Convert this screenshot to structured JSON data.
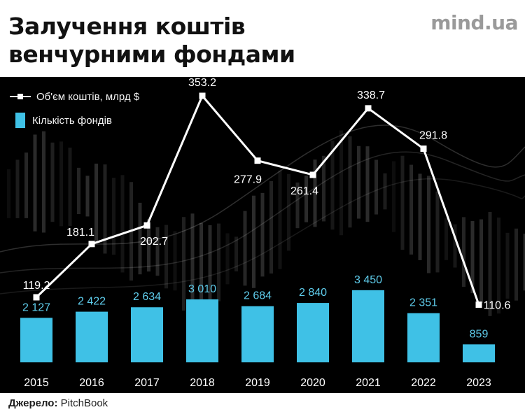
{
  "title_line1": "Залучення коштів",
  "title_line2": "венчурними фондами",
  "brand": "mind.ua",
  "legend": {
    "line_label": "Об'єм коштів, млрд $",
    "bar_label": "Кількість фондів"
  },
  "source": {
    "label": "Джерело:",
    "value": "PitchBook"
  },
  "colors": {
    "bar": "#3fc1e6",
    "line": "#ffffff",
    "background": "#000000"
  },
  "chart_data": {
    "type": "bar",
    "categories": [
      "2015",
      "2016",
      "2017",
      "2018",
      "2019",
      "2020",
      "2021",
      "2022",
      "2023"
    ],
    "series": [
      {
        "name": "Кількість фондів",
        "type": "bar",
        "values": [
          2127,
          2422,
          2634,
          3010,
          2684,
          2840,
          3450,
          2351,
          859
        ],
        "labels": [
          "2 127",
          "2 422",
          "2 634",
          "3 010",
          "2 684",
          "2 840",
          "3 450",
          "2 351",
          "859"
        ]
      },
      {
        "name": "Об'єм коштів, млрд $",
        "type": "line",
        "values": [
          119.2,
          181.1,
          202.7,
          353.2,
          277.9,
          261.4,
          338.7,
          291.8,
          110.6
        ],
        "labels": [
          "119.2",
          "181.1",
          "202.7",
          "353.2",
          "277.9",
          "261.4",
          "338.7",
          "291.8",
          "110.6"
        ]
      }
    ],
    "legend_position": "top-left",
    "grid": false
  }
}
